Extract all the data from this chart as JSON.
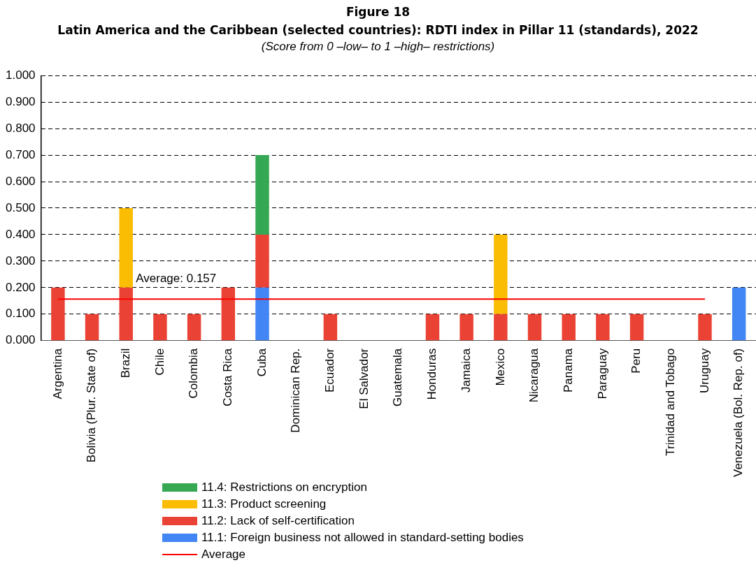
{
  "chart_data": {
    "type": "bar",
    "title": "Figure 18\nLatin America and the Caribbean (selected countries): RDTI index in Pillar 11 (standards), 2022",
    "subtitle": "(Score from 0 –low– to 1 –high– restrictions)",
    "categories": [
      "Argentina",
      "Bolivia (Plur. State of)",
      "Brazil",
      "Chile",
      "Colombia",
      "Costa Rica",
      "Cuba",
      "Dominican Rep.",
      "Ecuador",
      "El Salvador",
      "Guatemala",
      "Honduras",
      "Jamaica",
      "Mexico",
      "Nicaragua",
      "Panama",
      "Paraguay",
      "Peru",
      "Trinidad and Tobago",
      "Uruguay",
      "Venezuela (Bol. Rep. of)"
    ],
    "stacked": true,
    "series": [
      {
        "name": "11.1: Foreign business not allowed in standard-setting bodies",
        "color": "#4285f4",
        "values": [
          0,
          0,
          0,
          0,
          0,
          0,
          0.2,
          0,
          0,
          0,
          0,
          0,
          0,
          0,
          0,
          0,
          0,
          0,
          0,
          0,
          0.2
        ]
      },
      {
        "name": "11.2: Lack of self-certification",
        "color": "#ea4335",
        "values": [
          0.2,
          0.1,
          0.2,
          0.1,
          0.1,
          0.2,
          0.2,
          0,
          0.1,
          0,
          0,
          0.1,
          0.1,
          0.1,
          0.1,
          0.1,
          0.1,
          0.1,
          0,
          0.1,
          0
        ]
      },
      {
        "name": "11.3: Product screening",
        "color": "#fbbc04",
        "values": [
          0,
          0,
          0.3,
          0,
          0,
          0,
          0,
          0,
          0,
          0,
          0,
          0,
          0,
          0.3,
          0,
          0,
          0,
          0,
          0,
          0,
          0
        ]
      },
      {
        "name": "11.4: Restrictions on encryption",
        "color": "#34a853",
        "values": [
          0,
          0,
          0,
          0,
          0,
          0,
          0.3,
          0,
          0,
          0,
          0,
          0,
          0,
          0,
          0,
          0,
          0,
          0,
          0,
          0,
          0
        ]
      },
      {
        "name": "Average",
        "type": "line",
        "color": "#ff0000",
        "values": [
          0.157,
          0.157,
          0.157,
          0.157,
          0.157,
          0.157,
          0.157,
          0.157,
          0.157,
          0.157,
          0.157,
          0.157,
          0.157,
          0.157,
          0.157,
          0.157,
          0.157,
          0.157,
          0.157,
          0.157,
          null
        ]
      }
    ],
    "ylim": [
      0,
      1
    ],
    "yticks": [
      {
        "value": 0,
        "label": "0.000"
      },
      {
        "value": 0.1,
        "label": "0.100"
      },
      {
        "value": 0.2,
        "label": "0.200"
      },
      {
        "value": 0.3,
        "label": "0.300"
      },
      {
        "value": 0.4,
        "label": "0.400"
      },
      {
        "value": 0.5,
        "label": "0.500"
      },
      {
        "value": 0.6,
        "label": "0.600"
      },
      {
        "value": 0.7,
        "label": "0.700"
      },
      {
        "value": 0.8,
        "label": "0.800"
      },
      {
        "value": 0.9,
        "label": "0.900"
      },
      {
        "value": 1,
        "label": "1.000"
      }
    ],
    "annotations": [
      {
        "text": "Average: 0.157",
        "x": "Brazil",
        "y": 0.157
      }
    ],
    "grid": "y",
    "legend": "bottom",
    "marker": "none"
  }
}
